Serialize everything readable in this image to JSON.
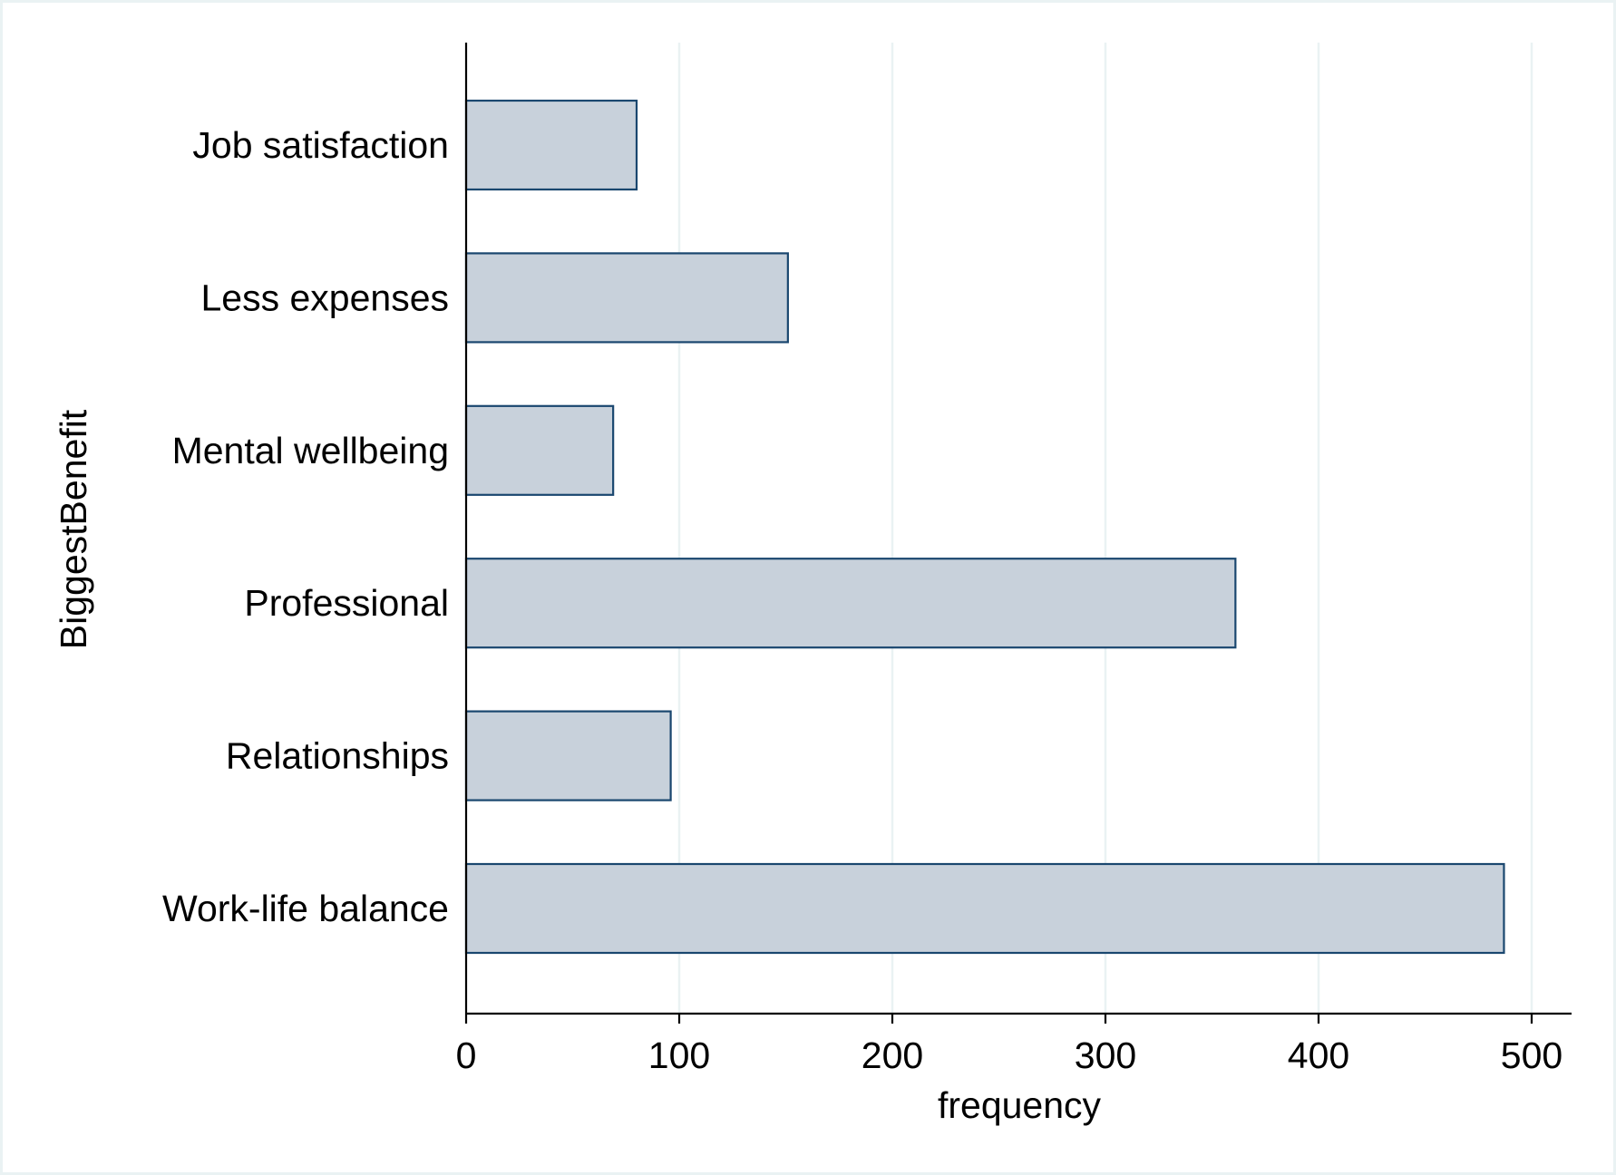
{
  "chart_data": {
    "type": "bar",
    "orientation": "horizontal",
    "categories": [
      "Job satisfaction",
      "Less expenses",
      "Mental wellbeing",
      "Professional",
      "Relationships",
      "Work-life balance"
    ],
    "values": [
      80,
      151,
      69,
      361,
      96,
      487
    ],
    "xlabel": "frequency",
    "ylabel": "BiggestBenefit",
    "xlim": [
      0,
      500
    ],
    "xticks": [
      0,
      100,
      200,
      300,
      400,
      500
    ],
    "xtick_labels": [
      "0",
      "100",
      "200",
      "300",
      "400",
      "500"
    ],
    "grid": "vertical",
    "legend": "none",
    "colors": {
      "bar_fill": "#c8d1db",
      "bar_stroke": "#1a476f",
      "grid": "#eaf2f3",
      "axis": "#000000",
      "frame": "#eaf2f3"
    }
  }
}
